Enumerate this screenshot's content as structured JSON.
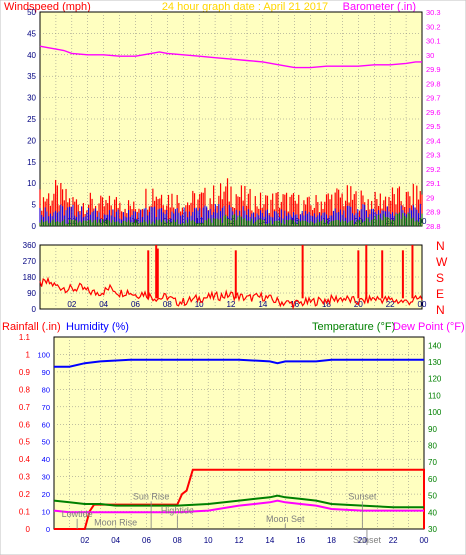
{
  "colors": {
    "background": "#ffffff",
    "plot_bg": "#ffffc0",
    "grid": "#808080",
    "frame": "#000000",
    "windspeed": "#ff0000",
    "gust": "#ff0000",
    "wind_avg": "#0000ff",
    "wind_low": "#008000",
    "barometer": "#ff00ff",
    "direction": "#ff0000",
    "rainfall": "#ff0000",
    "humidity": "#0000ff",
    "temperature": "#008000",
    "dewpoint": "#ff00ff",
    "title": "#ffd700"
  },
  "chart_data": [
    {
      "type": "line",
      "title": "24 hour graph date : April 21 2017",
      "left_label": "Windspeed (mph)",
      "right_label": "Barometer (.in)",
      "left_ylim": [
        0,
        50
      ],
      "left_ticks": [
        "0",
        "5",
        "10",
        "15",
        "20",
        "25",
        "30",
        "35",
        "40",
        "45",
        "50"
      ],
      "right_ylim": [
        28.8,
        30.3
      ],
      "right_ticks": [
        "28.8",
        "28.9",
        "29",
        "29.1",
        "29.2",
        "29.3",
        "29.4",
        "29.5",
        "29.6",
        "29.7",
        "29.8",
        "29.9",
        "30",
        "30.1",
        "30.2",
        "30.3"
      ],
      "x_ticks": [
        "02",
        "04",
        "06",
        "08",
        "10",
        "12",
        "14",
        "16",
        "18",
        "20",
        "22",
        "00"
      ],
      "series": [
        {
          "key": "barometer",
          "axis": "right",
          "x": [
            0.0,
            0.5,
            1.0,
            1.5,
            2.0,
            3.0,
            4.0,
            5.0,
            6.0,
            6.5,
            7.0,
            7.5,
            8.0,
            9.0,
            10.0,
            11.0,
            12.0,
            13.0,
            14.0,
            15.0,
            15.5,
            16.0,
            17.0,
            18.0,
            19.0,
            20.0,
            21.0,
            22.0,
            23.0,
            23.6,
            24.0
          ],
          "values": [
            30.06,
            30.05,
            30.04,
            30.03,
            30.01,
            30.0,
            30.0,
            29.99,
            29.99,
            30.0,
            30.01,
            30.02,
            30.01,
            30.0,
            29.99,
            29.98,
            29.97,
            29.96,
            29.95,
            29.93,
            29.92,
            29.91,
            29.91,
            29.92,
            29.92,
            29.92,
            29.93,
            29.93,
            29.94,
            29.95,
            29.95
          ]
        },
        {
          "key": "gust_max",
          "axis": "left",
          "x": [
            0.0,
            1.0,
            2.0,
            3.0,
            4.0,
            5.0,
            6.0,
            7.0,
            8.0,
            9.0,
            10.0,
            11.0,
            12.0,
            13.0,
            14.0,
            15.0,
            16.0,
            17.0,
            18.0,
            19.0,
            20.0,
            21.0,
            22.0,
            23.0,
            24.0
          ],
          "values": [
            9,
            11,
            8,
            8,
            7,
            8,
            6,
            12,
            10,
            8,
            9,
            10,
            12,
            9,
            8,
            9,
            8,
            7,
            9,
            10,
            9,
            8,
            10,
            9,
            11
          ]
        },
        {
          "key": "wind_avg",
          "axis": "left",
          "x": [
            0.0,
            2.0,
            4.0,
            6.0,
            7.0,
            8.0,
            10.0,
            12.0,
            14.0,
            16.0,
            18.0,
            20.0,
            22.0,
            24.0
          ],
          "values": [
            4,
            4,
            3,
            3,
            4,
            3,
            4,
            4,
            3,
            3,
            3,
            4,
            4,
            4
          ]
        },
        {
          "key": "wind_low",
          "axis": "left",
          "x": [
            0.0,
            2.0,
            4.0,
            6.0,
            8.0,
            10.0,
            12.0,
            14.0,
            16.0,
            18.0,
            20.0,
            22.0,
            24.0
          ],
          "values": [
            1,
            1,
            1,
            1,
            1,
            1,
            2,
            1,
            1,
            1,
            1,
            2,
            2
          ]
        }
      ]
    },
    {
      "type": "line",
      "left_ylim": [
        0,
        360
      ],
      "left_ticks": [
        "0",
        "90",
        "180",
        "270",
        "360"
      ],
      "right_labels": [
        "N",
        "W",
        "S",
        "E",
        "N"
      ],
      "x_ticks": [
        "02",
        "04",
        "06",
        "08",
        "10",
        "12",
        "14",
        "16",
        "18",
        "20",
        "22",
        "00"
      ],
      "series": [
        {
          "key": "direction",
          "x": [
            0.0,
            0.5,
            1.0,
            1.5,
            2.0,
            2.5,
            3.0,
            3.5,
            4.0,
            4.5,
            5.0,
            5.5,
            6.0,
            6.5,
            7.0,
            7.5,
            8.0,
            8.5,
            9.0,
            10.0,
            11.0,
            12.0,
            13.0,
            14.0,
            15.0,
            16.0,
            17.0,
            18.0,
            19.0,
            20.0,
            21.0,
            22.0,
            23.0,
            24.0
          ],
          "values": [
            140,
            150,
            130,
            120,
            110,
            120,
            100,
            90,
            100,
            120,
            90,
            100,
            80,
            90,
            70,
            60,
            70,
            40,
            40,
            60,
            70,
            80,
            60,
            70,
            40,
            30,
            40,
            50,
            60,
            40,
            60,
            50,
            40,
            60
          ],
          "spikes": [
            {
              "x": 6.8,
              "value": 330
            },
            {
              "x": 7.3,
              "value": 360
            },
            {
              "x": 7.4,
              "value": 340
            },
            {
              "x": 12.3,
              "value": 330
            },
            {
              "x": 16.5,
              "value": 360
            },
            {
              "x": 20.0,
              "value": 330
            },
            {
              "x": 20.5,
              "value": 360
            },
            {
              "x": 21.5,
              "value": 330
            },
            {
              "x": 22.8,
              "value": 330
            },
            {
              "x": 23.4,
              "value": 360
            }
          ]
        }
      ]
    },
    {
      "type": "line",
      "left_label": "Rainfall (.in)",
      "mid_label": "Humidity (%)",
      "right_label": "Temperature (°F)",
      "right_label2": "Dew Point (°F)",
      "left_ylim": [
        0,
        1.1
      ],
      "left_ticks": [
        "0",
        "0.1",
        "0.2",
        "0.3",
        "0.4",
        "0.5",
        "0.6",
        "0.7",
        "0.8",
        "0.9",
        "1",
        "1.1"
      ],
      "humidity_ticks": [
        "0",
        "10",
        "20",
        "30",
        "40",
        "50",
        "60",
        "70",
        "80",
        "90",
        "100"
      ],
      "right_ylim": [
        30,
        145
      ],
      "right_ticks": [
        "30",
        "40",
        "50",
        "60",
        "70",
        "80",
        "90",
        "100",
        "110",
        "120",
        "130",
        "140"
      ],
      "x_ticks": [
        "02",
        "04",
        "06",
        "08",
        "10",
        "12",
        "14",
        "16",
        "18",
        "20",
        "22",
        "00"
      ],
      "series": [
        {
          "key": "rainfall",
          "x": [
            0.0,
            2.0,
            2.3,
            2.6,
            8.0,
            8.3,
            8.6,
            9.0,
            24.0,
            24.0
          ],
          "values": [
            0.0,
            0.0,
            0.1,
            0.14,
            0.14,
            0.2,
            0.22,
            0.34,
            0.34,
            0.0
          ]
        },
        {
          "key": "humidity",
          "x": [
            0.0,
            1.0,
            2.0,
            3.0,
            5.0,
            8.0,
            12.0,
            14.0,
            14.5,
            15.0,
            16.0,
            17.0,
            18.0,
            20.0,
            22.0,
            24.0
          ],
          "values": [
            93,
            93,
            95,
            96,
            97,
            97,
            97,
            96,
            95,
            96,
            96,
            96,
            97,
            97,
            97,
            97
          ]
        },
        {
          "key": "temperature",
          "x": [
            0.0,
            1.0,
            2.0,
            3.0,
            4.0,
            6.0,
            8.0,
            10.0,
            12.0,
            13.0,
            14.0,
            14.5,
            15.0,
            16.0,
            17.0,
            18.0,
            20.0,
            22.0,
            24.0
          ],
          "values": [
            47,
            46,
            45,
            45,
            44,
            44,
            44,
            45,
            47,
            48,
            49,
            50,
            49,
            48,
            47,
            45,
            44,
            43,
            43
          ]
        },
        {
          "key": "dewpoint",
          "x": [
            0.0,
            1.0,
            2.0,
            3.0,
            4.0,
            6.0,
            8.0,
            10.0,
            12.0,
            13.0,
            14.0,
            14.5,
            15.0,
            16.0,
            17.0,
            18.0,
            20.0,
            22.0,
            24.0
          ],
          "values": [
            41,
            40,
            40,
            40,
            40,
            40,
            40,
            41,
            44,
            45,
            46,
            47,
            46,
            45,
            44,
            42,
            41,
            41,
            41
          ]
        }
      ],
      "annotations": {
        "lowtide": {
          "label": "Lowtide",
          "x": 1.5
        },
        "moonrise": {
          "label": "Moon Rise",
          "x": 4.0
        },
        "sunrise": {
          "label": "Sun Rise",
          "x": 6.3
        },
        "hightide": {
          "label": "Hightide",
          "x": 8.0
        },
        "moonset": {
          "label": "Moon Set",
          "x": 15.0
        },
        "sunset": {
          "label": "Sunset",
          "x": 20.0
        },
        "sunset2": {
          "label": "Sunset",
          "x": 20.3
        }
      }
    }
  ]
}
